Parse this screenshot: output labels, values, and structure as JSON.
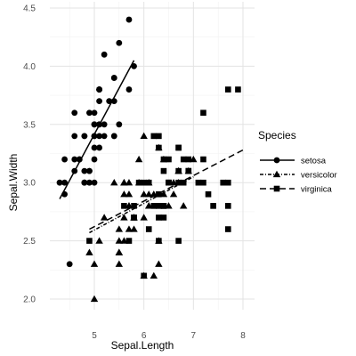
{
  "chart_data": {
    "type": "scatter",
    "xlabel": "Sepal.Length",
    "ylabel": "Sepal.Width",
    "xlim": [
      4.3,
      8.0
    ],
    "ylim": [
      2.0,
      4.4
    ],
    "x_ticks": [
      "5",
      "6",
      "7",
      "8"
    ],
    "y_ticks": [
      "2.0",
      "2.5",
      "3.0",
      "3.5",
      "4.0",
      "4.5"
    ],
    "grid": true,
    "legend": {
      "title": "Species",
      "position": "right"
    },
    "series": [
      {
        "name": "setosa",
        "marker": "circle",
        "line": "solid",
        "fit": [
          [
            4.3,
            2.86
          ],
          [
            5.8,
            4.05
          ]
        ],
        "points": [
          [
            5.1,
            3.5
          ],
          [
            4.9,
            3.0
          ],
          [
            4.7,
            3.2
          ],
          [
            4.6,
            3.1
          ],
          [
            5.0,
            3.6
          ],
          [
            5.4,
            3.9
          ],
          [
            4.6,
            3.4
          ],
          [
            5.0,
            3.4
          ],
          [
            4.4,
            2.9
          ],
          [
            4.9,
            3.1
          ],
          [
            5.4,
            3.7
          ],
          [
            4.8,
            3.4
          ],
          [
            4.8,
            3.0
          ],
          [
            4.3,
            3.0
          ],
          [
            5.8,
            4.0
          ],
          [
            5.7,
            4.4
          ],
          [
            5.4,
            3.9
          ],
          [
            5.1,
            3.5
          ],
          [
            5.7,
            3.8
          ],
          [
            5.1,
            3.8
          ],
          [
            5.4,
            3.4
          ],
          [
            5.1,
            3.7
          ],
          [
            4.6,
            3.6
          ],
          [
            5.1,
            3.3
          ],
          [
            4.8,
            3.4
          ],
          [
            5.0,
            3.0
          ],
          [
            5.0,
            3.4
          ],
          [
            5.2,
            3.5
          ],
          [
            5.2,
            3.4
          ],
          [
            4.7,
            3.2
          ],
          [
            4.8,
            3.1
          ],
          [
            5.4,
            3.4
          ],
          [
            5.2,
            4.1
          ],
          [
            5.5,
            4.2
          ],
          [
            4.9,
            3.1
          ],
          [
            5.0,
            3.2
          ],
          [
            5.5,
            3.5
          ],
          [
            4.9,
            3.6
          ],
          [
            4.4,
            3.0
          ],
          [
            5.1,
            3.4
          ],
          [
            5.0,
            3.5
          ],
          [
            4.5,
            2.3
          ],
          [
            4.4,
            3.2
          ],
          [
            5.0,
            3.5
          ],
          [
            5.1,
            3.8
          ],
          [
            4.8,
            3.0
          ],
          [
            5.1,
            3.8
          ],
          [
            4.6,
            3.2
          ],
          [
            5.3,
            3.7
          ],
          [
            5.0,
            3.3
          ]
        ]
      },
      {
        "name": "versicolor",
        "marker": "triangle",
        "line": "dotted",
        "fit": [
          [
            4.9,
            2.57
          ],
          [
            7.0,
            3.05
          ]
        ],
        "points": [
          [
            7.0,
            3.2
          ],
          [
            6.4,
            3.2
          ],
          [
            6.9,
            3.1
          ],
          [
            5.5,
            2.3
          ],
          [
            6.5,
            2.8
          ],
          [
            5.7,
            2.8
          ],
          [
            6.3,
            3.3
          ],
          [
            4.9,
            2.4
          ],
          [
            6.6,
            2.9
          ],
          [
            5.2,
            2.7
          ],
          [
            5.0,
            2.0
          ],
          [
            5.9,
            3.0
          ],
          [
            6.0,
            2.2
          ],
          [
            6.1,
            2.9
          ],
          [
            5.6,
            2.9
          ],
          [
            6.7,
            3.1
          ],
          [
            5.6,
            3.0
          ],
          [
            5.8,
            2.7
          ],
          [
            6.2,
            2.2
          ],
          [
            5.6,
            2.5
          ],
          [
            5.9,
            3.2
          ],
          [
            6.1,
            2.8
          ],
          [
            6.3,
            2.5
          ],
          [
            6.1,
            2.8
          ],
          [
            6.4,
            2.9
          ],
          [
            6.6,
            3.0
          ],
          [
            6.8,
            2.8
          ],
          [
            6.7,
            3.0
          ],
          [
            6.0,
            2.9
          ],
          [
            5.7,
            2.6
          ],
          [
            5.5,
            2.4
          ],
          [
            5.5,
            2.4
          ],
          [
            5.8,
            2.7
          ],
          [
            6.0,
            2.7
          ],
          [
            5.4,
            3.0
          ],
          [
            6.0,
            3.4
          ],
          [
            6.7,
            3.1
          ],
          [
            6.3,
            2.3
          ],
          [
            5.6,
            3.0
          ],
          [
            5.5,
            2.5
          ],
          [
            5.5,
            2.6
          ],
          [
            6.1,
            3.0
          ],
          [
            5.8,
            2.6
          ],
          [
            5.0,
            2.3
          ],
          [
            5.6,
            2.7
          ],
          [
            5.7,
            3.0
          ],
          [
            5.7,
            2.9
          ],
          [
            6.2,
            2.9
          ],
          [
            5.1,
            2.5
          ],
          [
            5.7,
            2.8
          ]
        ]
      },
      {
        "name": "virginica",
        "marker": "square",
        "line": "dashed",
        "fit": [
          [
            4.9,
            2.6
          ],
          [
            8.0,
            3.28
          ]
        ],
        "points": [
          [
            6.3,
            3.3
          ],
          [
            5.8,
            2.7
          ],
          [
            7.1,
            3.0
          ],
          [
            6.3,
            2.9
          ],
          [
            6.5,
            3.0
          ],
          [
            7.6,
            3.0
          ],
          [
            4.9,
            2.5
          ],
          [
            7.3,
            2.9
          ],
          [
            6.7,
            2.5
          ],
          [
            7.2,
            3.6
          ],
          [
            6.5,
            3.2
          ],
          [
            6.4,
            2.7
          ],
          [
            6.8,
            3.0
          ],
          [
            5.7,
            2.5
          ],
          [
            5.8,
            2.8
          ],
          [
            6.4,
            3.2
          ],
          [
            6.5,
            3.0
          ],
          [
            7.7,
            3.8
          ],
          [
            7.7,
            2.6
          ],
          [
            6.0,
            2.2
          ],
          [
            6.9,
            3.2
          ],
          [
            5.6,
            2.8
          ],
          [
            7.7,
            2.8
          ],
          [
            6.3,
            2.7
          ],
          [
            6.7,
            3.3
          ],
          [
            7.2,
            3.2
          ],
          [
            6.2,
            2.8
          ],
          [
            6.1,
            3.0
          ],
          [
            6.4,
            2.8
          ],
          [
            7.2,
            3.0
          ],
          [
            7.4,
            2.8
          ],
          [
            7.9,
            3.8
          ],
          [
            6.4,
            2.8
          ],
          [
            6.3,
            2.8
          ],
          [
            6.1,
            2.6
          ],
          [
            7.7,
            3.0
          ],
          [
            6.3,
            3.4
          ],
          [
            6.4,
            3.1
          ],
          [
            6.0,
            3.0
          ],
          [
            6.9,
            3.1
          ],
          [
            6.7,
            3.1
          ],
          [
            6.9,
            3.1
          ],
          [
            5.8,
            2.7
          ],
          [
            6.8,
            3.2
          ],
          [
            6.7,
            3.3
          ],
          [
            6.7,
            3.0
          ],
          [
            6.3,
            2.5
          ],
          [
            6.5,
            3.0
          ],
          [
            6.2,
            3.4
          ],
          [
            5.9,
            3.0
          ]
        ]
      }
    ]
  }
}
